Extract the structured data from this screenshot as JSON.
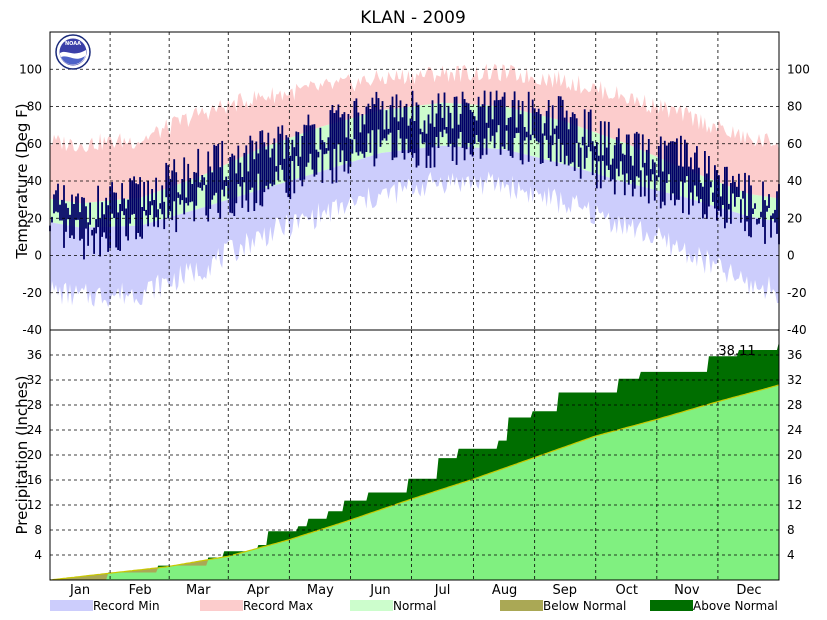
{
  "chart_data": {
    "title": "KLAN - 2009",
    "months": [
      "Jan",
      "Feb",
      "Mar",
      "Apr",
      "May",
      "Jun",
      "Jul",
      "Aug",
      "Sep",
      "Oct",
      "Nov",
      "Dec"
    ],
    "legend": [
      {
        "label": "Record Min",
        "color": "#cccdfc"
      },
      {
        "label": "Record Max",
        "color": "#fccccc"
      },
      {
        "label": "Normal",
        "color": "#ccfdcc"
      },
      {
        "label": "Below Normal",
        "color": "#aaa855"
      },
      {
        "label": "Above Normal",
        "color": "#006e00"
      }
    ],
    "charts": [
      {
        "type": "area",
        "name": "temperature",
        "ylabel": "Temperature (Deg F)",
        "ylim": [
          -40,
          120
        ],
        "yticks": [
          -40,
          -20,
          0,
          20,
          40,
          60,
          80,
          100
        ],
        "grid": true,
        "x_unit": "day of year 2009",
        "record_max_monthly": [
          {
            "month": "Jan",
            "value": 60
          },
          {
            "month": "Feb",
            "value": 62
          },
          {
            "month": "Mar",
            "value": 76
          },
          {
            "month": "Apr",
            "value": 85
          },
          {
            "month": "May",
            "value": 90
          },
          {
            "month": "Jun",
            "value": 95
          },
          {
            "month": "Jul",
            "value": 98
          },
          {
            "month": "Aug",
            "value": 98
          },
          {
            "month": "Sep",
            "value": 94
          },
          {
            "month": "Oct",
            "value": 85
          },
          {
            "month": "Nov",
            "value": 75
          },
          {
            "month": "Dec",
            "value": 62
          }
        ],
        "normal_high_monthly": [
          {
            "month": "Jan",
            "value": 28
          },
          {
            "month": "Feb",
            "value": 31
          },
          {
            "month": "Mar",
            "value": 42
          },
          {
            "month": "Apr",
            "value": 57
          },
          {
            "month": "May",
            "value": 69
          },
          {
            "month": "Jun",
            "value": 78
          },
          {
            "month": "Jul",
            "value": 82
          },
          {
            "month": "Aug",
            "value": 80
          },
          {
            "month": "Sep",
            "value": 72
          },
          {
            "month": "Oct",
            "value": 60
          },
          {
            "month": "Nov",
            "value": 46
          },
          {
            "month": "Dec",
            "value": 33
          }
        ],
        "normal_low_monthly": [
          {
            "month": "Jan",
            "value": 15
          },
          {
            "month": "Feb",
            "value": 16
          },
          {
            "month": "Mar",
            "value": 25
          },
          {
            "month": "Apr",
            "value": 35
          },
          {
            "month": "May",
            "value": 45
          },
          {
            "month": "Jun",
            "value": 55
          },
          {
            "month": "Jul",
            "value": 59
          },
          {
            "month": "Aug",
            "value": 57
          },
          {
            "month": "Sep",
            "value": 49
          },
          {
            "month": "Oct",
            "value": 39
          },
          {
            "month": "Nov",
            "value": 31
          },
          {
            "month": "Dec",
            "value": 21
          }
        ],
        "record_min_monthly": [
          {
            "month": "Jan",
            "value": -22
          },
          {
            "month": "Feb",
            "value": -20
          },
          {
            "month": "Mar",
            "value": -8
          },
          {
            "month": "Apr",
            "value": 10
          },
          {
            "month": "May",
            "value": 22
          },
          {
            "month": "Jun",
            "value": 32
          },
          {
            "month": "Jul",
            "value": 40
          },
          {
            "month": "Aug",
            "value": 38
          },
          {
            "month": "Sep",
            "value": 28
          },
          {
            "month": "Oct",
            "value": 16
          },
          {
            "month": "Nov",
            "value": 2
          },
          {
            "month": "Dec",
            "value": -16
          }
        ],
        "observed_daily_high_low_monthly_mean": [
          {
            "month": "Jan",
            "high": 24,
            "low": 8
          },
          {
            "month": "Feb",
            "high": 32,
            "low": 15
          },
          {
            "month": "Mar",
            "high": 46,
            "low": 28
          },
          {
            "month": "Apr",
            "high": 55,
            "low": 35
          },
          {
            "month": "May",
            "high": 68,
            "low": 47
          },
          {
            "month": "Jun",
            "high": 77,
            "low": 58
          },
          {
            "month": "Jul",
            "high": 77,
            "low": 58
          },
          {
            "month": "Aug",
            "high": 78,
            "low": 60
          },
          {
            "month": "Sep",
            "high": 75,
            "low": 54
          },
          {
            "month": "Oct",
            "high": 55,
            "low": 40
          },
          {
            "month": "Nov",
            "high": 52,
            "low": 33
          },
          {
            "month": "Dec",
            "high": 32,
            "low": 20
          }
        ]
      },
      {
        "type": "area",
        "name": "precipitation",
        "ylabel": "Precipitation (Inches)",
        "ylim": [
          0,
          40
        ],
        "yticks": [
          4,
          8,
          12,
          16,
          20,
          24,
          28,
          32,
          36
        ],
        "grid": true,
        "x_unit": "day of year 2009",
        "total_label": "38.11",
        "observed_cumulative": [
          {
            "day": 1,
            "value": 0
          },
          {
            "day": 30,
            "value": 1.2
          },
          {
            "day": 55,
            "value": 2.3
          },
          {
            "day": 80,
            "value": 3.6
          },
          {
            "day": 88,
            "value": 4.6
          },
          {
            "day": 105,
            "value": 5.6
          },
          {
            "day": 110,
            "value": 7.8
          },
          {
            "day": 125,
            "value": 8.6
          },
          {
            "day": 130,
            "value": 9.8
          },
          {
            "day": 140,
            "value": 11.0
          },
          {
            "day": 148,
            "value": 12.7
          },
          {
            "day": 160,
            "value": 14.0
          },
          {
            "day": 180,
            "value": 16.2
          },
          {
            "day": 195,
            "value": 19.5
          },
          {
            "day": 205,
            "value": 21.0
          },
          {
            "day": 225,
            "value": 22.3
          },
          {
            "day": 230,
            "value": 26.0
          },
          {
            "day": 242,
            "value": 27.0
          },
          {
            "day": 255,
            "value": 30.0
          },
          {
            "day": 285,
            "value": 32.2
          },
          {
            "day": 296,
            "value": 33.3
          },
          {
            "day": 330,
            "value": 35.8
          },
          {
            "day": 345,
            "value": 36.8
          },
          {
            "day": 365,
            "value": 38.11
          }
        ],
        "normal_cumulative": [
          {
            "day": 1,
            "value": 0
          },
          {
            "day": 31,
            "value": 1.1
          },
          {
            "day": 59,
            "value": 2.1
          },
          {
            "day": 90,
            "value": 3.8
          },
          {
            "day": 120,
            "value": 6.4
          },
          {
            "day": 151,
            "value": 9.6
          },
          {
            "day": 181,
            "value": 12.9
          },
          {
            "day": 212,
            "value": 16.1
          },
          {
            "day": 243,
            "value": 19.6
          },
          {
            "day": 273,
            "value": 23.0
          },
          {
            "day": 304,
            "value": 25.7
          },
          {
            "day": 334,
            "value": 28.5
          },
          {
            "day": 365,
            "value": 31.2
          }
        ]
      }
    ]
  }
}
